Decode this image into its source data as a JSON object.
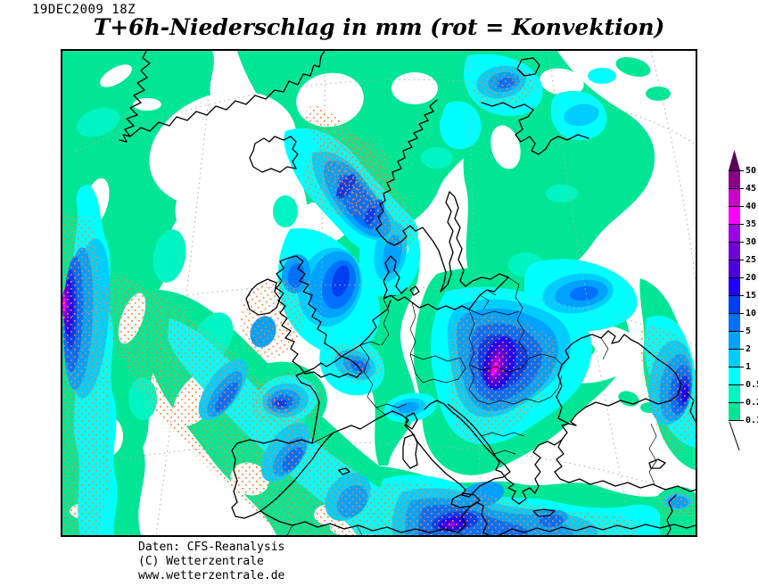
{
  "header": {
    "datestamp": "19DEC2009 18Z",
    "title": "T+6h-Niederschlag in mm (rot = Konvektion)"
  },
  "footer": {
    "line1": "Daten: CFS-Reanalysis",
    "line2": "(C) Wetterzentrale",
    "line3": "www.wetterzentrale.de"
  },
  "legend": {
    "unit": "mm",
    "levels": [
      {
        "value": "0.1",
        "color": "#00E695"
      },
      {
        "value": "0.2",
        "color": "#00F5C3"
      },
      {
        "value": "0.5",
        "color": "#00FFFF"
      },
      {
        "value": "1",
        "color": "#00CDFF"
      },
      {
        "value": "2",
        "color": "#00A1FF"
      },
      {
        "value": "5",
        "color": "#0070FF"
      },
      {
        "value": "10",
        "color": "#003EF0"
      },
      {
        "value": "15",
        "color": "#1E00FF"
      },
      {
        "value": "20",
        "color": "#4B00DC"
      },
      {
        "value": "25",
        "color": "#7000D8"
      },
      {
        "value": "30",
        "color": "#9C00E8"
      },
      {
        "value": "35",
        "color": "#FF00FF"
      },
      {
        "value": "40",
        "color": "#CC00CC"
      },
      {
        "value": "45",
        "color": "#8B008B"
      },
      {
        "value": "50",
        "color": "#5A005A"
      }
    ]
  },
  "map": {
    "region": "Europe and North Atlantic",
    "coastline_color": "#000000",
    "graticule_color": "#ABABAB",
    "convection_dot_color": "#FF8038",
    "background": "#FFFFFF"
  },
  "chart_data": {
    "type": "heatmap",
    "title": "T+6h-Niederschlag in mm (rot = Konvektion)",
    "legend_values_mm": [
      0.1,
      0.2,
      0.5,
      1,
      2,
      5,
      10,
      15,
      20,
      25,
      30,
      35,
      40,
      45,
      50
    ],
    "legend_position": "right",
    "notable_maxima": [
      {
        "area": "Albania / western Balkans",
        "max_level_mm": "35-40"
      },
      {
        "area": "far west Atlantic (left map edge)",
        "max_level_mm": "30-35"
      },
      {
        "area": "Alboran Sea / Gibraltar - Morocco",
        "max_level_mm": "20-30"
      },
      {
        "area": "Norwegian coast and North Sea",
        "max_level_mm": "10-15"
      },
      {
        "area": "western Russia / Ukraine border",
        "max_level_mm": "5-10"
      },
      {
        "area": "Bay of Biscay",
        "max_level_mm": "5-10"
      },
      {
        "area": "eastern Black Sea / Caucasus",
        "max_level_mm": "10-15"
      }
    ],
    "convection_note": "red/orange stippling marks convective precipitation"
  }
}
